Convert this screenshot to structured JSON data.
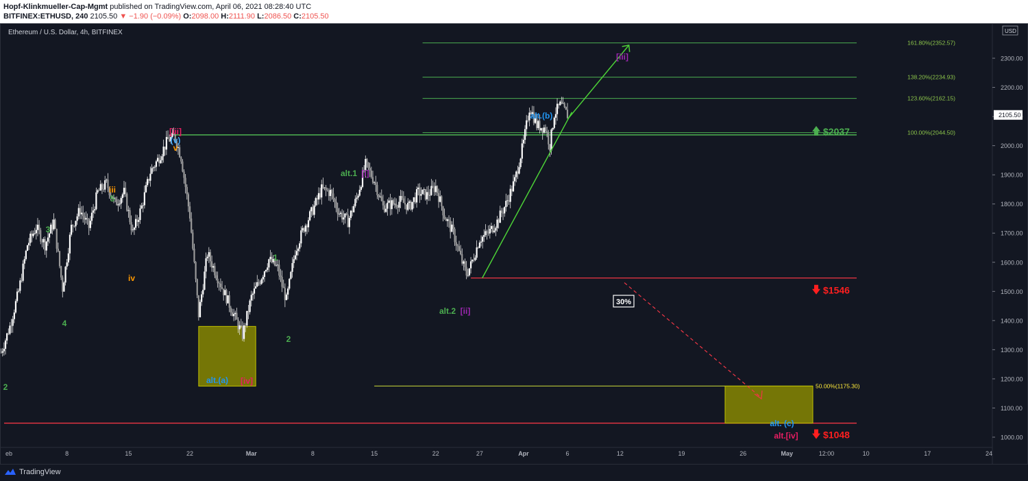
{
  "header": {
    "author": "Hopf-Klinkmueller-Cap-Mgmt",
    "published": "published on TradingView.com, April 06, 2021 08:28:40 UTC",
    "symbol": "BITFINEX:ETHUSD, 240",
    "last": "2105.50",
    "change": "▼ −1.90 (−0.09%)",
    "o_label": "O:",
    "o": "2098.00",
    "h_label": "H:",
    "h": "2111.90",
    "l_label": "L:",
    "l": "2086.50",
    "c_label": "C:",
    "c": "2105.50"
  },
  "footer": {
    "brand": "TradingView"
  },
  "chart_data": {
    "type": "candlestick",
    "title": "Ethereum / U.S. Dollar, 4h, BITFINEX",
    "currency": "USD",
    "last_price_label": "2105.50",
    "y_ticks": [
      1000,
      1100,
      1200,
      1300,
      1400,
      1500,
      1600,
      1700,
      1800,
      1900,
      2000,
      2100,
      2200,
      2300
    ],
    "y_tick_labels": [
      "1000.00",
      "1100.00",
      "1200.00",
      "1300.00",
      "1400.00",
      "1500.00",
      "1600.00",
      "1700.00",
      "1800.00",
      "1900.00",
      "2000.00",
      "2100.00",
      "2200.00",
      "2300.00"
    ],
    "ylim": [
      975,
      2395
    ],
    "x_ticks": [
      {
        "label": "eb",
        "day": 1
      },
      {
        "label": "8",
        "day": 8
      },
      {
        "label": "15",
        "day": 15
      },
      {
        "label": "22",
        "day": 22
      },
      {
        "label": "Mar",
        "day": 29
      },
      {
        "label": "8",
        "day": 36
      },
      {
        "label": "15",
        "day": 43
      },
      {
        "label": "22",
        "day": 50
      },
      {
        "label": "27",
        "day": 55
      },
      {
        "label": "Apr",
        "day": 60
      },
      {
        "label": "6",
        "day": 65
      },
      {
        "label": "12",
        "day": 71
      },
      {
        "label": "19",
        "day": 78
      },
      {
        "label": "26",
        "day": 85
      },
      {
        "label": "May",
        "day": 90
      },
      {
        "label": "12:00",
        "day": 94.5
      },
      {
        "label": "10",
        "day": 99
      },
      {
        "label": "17",
        "day": 106
      },
      {
        "label": "24",
        "day": 113
      }
    ],
    "xlim": [
      0.5,
      114
    ],
    "price_path": [
      [
        0.5,
        1290
      ],
      [
        1.5,
        1380
      ],
      [
        2.5,
        1500
      ],
      [
        3.5,
        1660
      ],
      [
        4.5,
        1720
      ],
      [
        5.5,
        1660
      ],
      [
        6.5,
        1740
      ],
      [
        7.5,
        1510
      ],
      [
        8.5,
        1720
      ],
      [
        9.5,
        1780
      ],
      [
        10.5,
        1720
      ],
      [
        11.5,
        1840
      ],
      [
        12.5,
        1870
      ],
      [
        13.5,
        1800
      ],
      [
        14.5,
        1840
      ],
      [
        15.5,
        1700
      ],
      [
        16.5,
        1790
      ],
      [
        17.5,
        1910
      ],
      [
        18.5,
        1960
      ],
      [
        19.5,
        2020
      ],
      [
        20.3,
        2030
      ],
      [
        21,
        1960
      ],
      [
        22,
        1760
      ],
      [
        23,
        1420
      ],
      [
        24,
        1630
      ],
      [
        25,
        1560
      ],
      [
        26,
        1490
      ],
      [
        27,
        1420
      ],
      [
        28,
        1350
      ],
      [
        29,
        1480
      ],
      [
        30,
        1540
      ],
      [
        31,
        1610
      ],
      [
        32,
        1580
      ],
      [
        32.5,
        1520
      ],
      [
        33,
        1470
      ],
      [
        34,
        1640
      ],
      [
        35,
        1720
      ],
      [
        36,
        1780
      ],
      [
        37,
        1850
      ],
      [
        38,
        1840
      ],
      [
        39,
        1770
      ],
      [
        40,
        1740
      ],
      [
        41,
        1820
      ],
      [
        42,
        1935
      ],
      [
        43,
        1880
      ],
      [
        44,
        1790
      ],
      [
        45,
        1800
      ],
      [
        46,
        1810
      ],
      [
        47,
        1790
      ],
      [
        48,
        1840
      ],
      [
        49,
        1830
      ],
      [
        50,
        1860
      ],
      [
        51,
        1760
      ],
      [
        52,
        1700
      ],
      [
        53,
        1600
      ],
      [
        53.5,
        1560
      ],
      [
        54,
        1590
      ],
      [
        55,
        1680
      ],
      [
        56,
        1700
      ],
      [
        57,
        1740
      ],
      [
        58,
        1800
      ],
      [
        59,
        1880
      ],
      [
        60,
        2010
      ],
      [
        60.7,
        2135
      ],
      [
        61.5,
        2070
      ],
      [
        62.5,
        2060
      ],
      [
        63,
        2000
      ],
      [
        63.5,
        2110
      ],
      [
        64.2,
        2140
      ],
      [
        65,
        2105
      ]
    ],
    "lines": [
      {
        "type": "fib",
        "label": "161.80%(2352.57)",
        "value": 2352.57
      },
      {
        "type": "fib",
        "label": "138.20%(2234.93)",
        "value": 2234.93
      },
      {
        "type": "fib",
        "label": "123.60%(2162.15)",
        "value": 2162.15
      },
      {
        "type": "fib",
        "label": "100.00%(2044.50)",
        "value": 2044.5
      },
      {
        "type": "fib",
        "label": "50.00%(1175.30)",
        "value": 1175.3
      },
      {
        "type": "support",
        "value": 2037
      },
      {
        "type": "support",
        "value": 1546
      },
      {
        "type": "support",
        "value": 1048
      }
    ],
    "price_callouts": [
      {
        "label": "$2037",
        "direction": "up",
        "color": "#4caf50"
      },
      {
        "label": "$1546",
        "direction": "down",
        "color": "#ff1f1f"
      },
      {
        "label": "$1048",
        "direction": "down",
        "color": "#ff1f1f"
      }
    ],
    "probability_label": "30%",
    "wave_labels": [
      {
        "text": "2",
        "color": "#4caf50"
      },
      {
        "text": "3",
        "color": "#4caf50"
      },
      {
        "text": "4",
        "color": "#4caf50"
      },
      {
        "text": "iii",
        "color": "#ff9800"
      },
      {
        "text": "5",
        "color": "#4caf50"
      },
      {
        "text": "iv",
        "color": "#ff9800"
      },
      {
        "text": "[iii]",
        "color": "#e91e63"
      },
      {
        "text": "(v)",
        "color": "#42a5f5"
      },
      {
        "text": "v",
        "color": "#ff9800"
      },
      {
        "text": "alt.(a)",
        "color": "#2196f3"
      },
      {
        "text": "[iv]",
        "color": "#e91e63"
      },
      {
        "text": "1",
        "color": "#4caf50"
      },
      {
        "text": "2",
        "color": "#4caf50"
      },
      {
        "text": "alt.1",
        "color": "#4caf50"
      },
      {
        "text": "[i]",
        "color": "#9c27b0"
      },
      {
        "text": "alt.2",
        "color": "#4caf50"
      },
      {
        "text": "[ii]",
        "color": "#9c27b0"
      },
      {
        "text": "alt.(b)",
        "color": "#2196f3"
      },
      {
        "text": "[iii]",
        "color": "#9c27b0"
      },
      {
        "text": "alt. (c)",
        "color": "#2196f3"
      },
      {
        "text": "alt.[iv]",
        "color": "#e91e63"
      }
    ]
  },
  "colors": {
    "background": "#131722",
    "candle": "#e8e8e8",
    "fib": "#4caf50",
    "support_red": "#f23645",
    "box_yellow": "#8f8f00",
    "trend_green": "#4cd137"
  }
}
